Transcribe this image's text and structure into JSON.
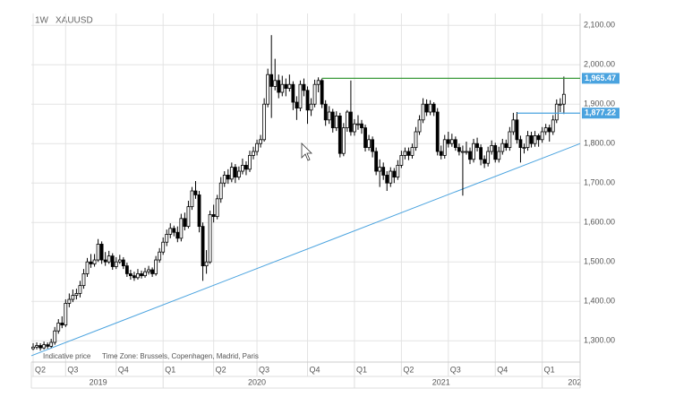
{
  "chart_data": {
    "type": "candlestick",
    "interval": "1W",
    "symbol": "XAUUSD",
    "footer_note": "Indicative price",
    "time_zone": "Time Zone: Brussels, Copenhagen, Madrid, Paris",
    "up_color": "#ffffff",
    "down_color": "#000000",
    "wick_color": "#000000",
    "ylim": [
      1246,
      2130
    ],
    "yticks": [
      {
        "value": 1300,
        "label": "1,300.00"
      },
      {
        "value": 1400,
        "label": "1,400.00"
      },
      {
        "value": 1500,
        "label": "1,500.00"
      },
      {
        "value": 1600,
        "label": "1,600.00"
      },
      {
        "value": 1700,
        "label": "1,700.00"
      },
      {
        "value": 1800,
        "label": "1,800.00"
      },
      {
        "value": 1900,
        "label": "1,900.00"
      },
      {
        "value": 2000,
        "label": "2,000.00"
      },
      {
        "value": 2100,
        "label": "2,100.00"
      }
    ],
    "xlim": [
      -0.5,
      151.5
    ],
    "xticks": [
      {
        "value": 0,
        "label": "Q2"
      },
      {
        "value": 9,
        "label": "Q3"
      },
      {
        "value": 23,
        "label": "Q4"
      },
      {
        "value": 36,
        "label": "Q1"
      },
      {
        "value": 50,
        "label": "Q2"
      },
      {
        "value": 62,
        "label": "Q3"
      },
      {
        "value": 76,
        "label": "Q4"
      },
      {
        "value": 89,
        "label": "Q1"
      },
      {
        "value": 102,
        "label": "Q2"
      },
      {
        "value": 115,
        "label": "Q3"
      },
      {
        "value": 128,
        "label": "Q4"
      },
      {
        "value": 141,
        "label": "Q1"
      }
    ],
    "year_labels": [
      {
        "value": 18,
        "label": "2019"
      },
      {
        "value": 62,
        "label": "2020"
      },
      {
        "value": 113,
        "label": "2021"
      },
      {
        "value": 150,
        "label": "202"
      }
    ],
    "grid": true,
    "trendline": {
      "color": "#4aa3df",
      "x": [
        -0.5,
        151.5
      ],
      "values": [
        1262,
        1800
      ]
    },
    "levels": [
      {
        "value": 1965.47,
        "label": "1,965.47",
        "start": 80,
        "color": "#3a9a3a"
      },
      {
        "value": 1877.22,
        "label": "1,877.22",
        "start": 134,
        "color": "#4aa3df"
      }
    ],
    "candles": [
      [
        1280,
        1294,
        1276,
        1284
      ],
      [
        1284,
        1296,
        1278,
        1288
      ],
      [
        1288,
        1294,
        1275,
        1282
      ],
      [
        1282,
        1298,
        1278,
        1290
      ],
      [
        1290,
        1296,
        1280,
        1286
      ],
      [
        1286,
        1305,
        1282,
        1296
      ],
      [
        1296,
        1335,
        1290,
        1325
      ],
      [
        1325,
        1355,
        1318,
        1345
      ],
      [
        1345,
        1362,
        1332,
        1340
      ],
      [
        1340,
        1405,
        1335,
        1395
      ],
      [
        1395,
        1420,
        1385,
        1405
      ],
      [
        1405,
        1430,
        1398,
        1415
      ],
      [
        1415,
        1432,
        1405,
        1420
      ],
      [
        1420,
        1452,
        1410,
        1440
      ],
      [
        1440,
        1482,
        1432,
        1470
      ],
      [
        1470,
        1510,
        1462,
        1500
      ],
      [
        1500,
        1520,
        1485,
        1495
      ],
      [
        1495,
        1520,
        1488,
        1505
      ],
      [
        1505,
        1558,
        1500,
        1545
      ],
      [
        1545,
        1552,
        1495,
        1505
      ],
      [
        1505,
        1525,
        1490,
        1500
      ],
      [
        1500,
        1528,
        1495,
        1515
      ],
      [
        1515,
        1522,
        1480,
        1488
      ],
      [
        1488,
        1512,
        1482,
        1500
      ],
      [
        1500,
        1518,
        1495,
        1505
      ],
      [
        1505,
        1512,
        1482,
        1490
      ],
      [
        1490,
        1498,
        1462,
        1470
      ],
      [
        1470,
        1480,
        1455,
        1465
      ],
      [
        1465,
        1475,
        1452,
        1460
      ],
      [
        1460,
        1482,
        1455,
        1470
      ],
      [
        1470,
        1478,
        1458,
        1465
      ],
      [
        1465,
        1485,
        1460,
        1475
      ],
      [
        1475,
        1490,
        1468,
        1480
      ],
      [
        1480,
        1486,
        1462,
        1470
      ],
      [
        1470,
        1515,
        1465,
        1505
      ],
      [
        1505,
        1535,
        1498,
        1525
      ],
      [
        1525,
        1562,
        1518,
        1550
      ],
      [
        1550,
        1582,
        1540,
        1570
      ],
      [
        1570,
        1598,
        1560,
        1585
      ],
      [
        1585,
        1592,
        1565,
        1575
      ],
      [
        1575,
        1590,
        1550,
        1560
      ],
      [
        1560,
        1622,
        1552,
        1610
      ],
      [
        1610,
        1625,
        1580,
        1590
      ],
      [
        1590,
        1655,
        1585,
        1640
      ],
      [
        1640,
        1690,
        1632,
        1680
      ],
      [
        1680,
        1705,
        1660,
        1670
      ],
      [
        1670,
        1680,
        1575,
        1590
      ],
      [
        1590,
        1600,
        1452,
        1490
      ],
      [
        1490,
        1530,
        1470,
        1500
      ],
      [
        1500,
        1630,
        1495,
        1620
      ],
      [
        1620,
        1645,
        1600,
        1615
      ],
      [
        1615,
        1670,
        1608,
        1660
      ],
      [
        1660,
        1715,
        1650,
        1700
      ],
      [
        1700,
        1730,
        1690,
        1720
      ],
      [
        1720,
        1735,
        1698,
        1710
      ],
      [
        1710,
        1752,
        1702,
        1740
      ],
      [
        1740,
        1748,
        1700,
        1715
      ],
      [
        1715,
        1742,
        1708,
        1730
      ],
      [
        1730,
        1762,
        1722,
        1745
      ],
      [
        1745,
        1755,
        1720,
        1735
      ],
      [
        1735,
        1782,
        1728,
        1770
      ],
      [
        1770,
        1792,
        1760,
        1780
      ],
      [
        1780,
        1810,
        1770,
        1800
      ],
      [
        1800,
        1822,
        1790,
        1810
      ],
      [
        1810,
        1915,
        1805,
        1900
      ],
      [
        1900,
        1990,
        1892,
        1975
      ],
      [
        1975,
        2075,
        1865,
        1945
      ],
      [
        1945,
        2015,
        1935,
        1960
      ],
      [
        1960,
        1975,
        1915,
        1930
      ],
      [
        1930,
        1972,
        1920,
        1950
      ],
      [
        1950,
        1965,
        1920,
        1940
      ],
      [
        1940,
        1975,
        1932,
        1950
      ],
      [
        1950,
        1958,
        1885,
        1905
      ],
      [
        1905,
        1920,
        1860,
        1890
      ],
      [
        1890,
        1960,
        1882,
        1950
      ],
      [
        1950,
        1965,
        1920,
        1935
      ],
      [
        1935,
        1945,
        1850,
        1885
      ],
      [
        1885,
        1915,
        1870,
        1900
      ],
      [
        1900,
        1962,
        1892,
        1950
      ],
      [
        1950,
        1968,
        1930,
        1960
      ],
      [
        1960,
        1965,
        1890,
        1900
      ],
      [
        1900,
        1910,
        1845,
        1860
      ],
      [
        1860,
        1895,
        1850,
        1880
      ],
      [
        1880,
        1888,
        1828,
        1840
      ],
      [
        1840,
        1882,
        1832,
        1870
      ],
      [
        1870,
        1878,
        1765,
        1775
      ],
      [
        1775,
        1852,
        1768,
        1840
      ],
      [
        1840,
        1885,
        1830,
        1880
      ],
      [
        1880,
        1960,
        1820,
        1830
      ],
      [
        1830,
        1862,
        1820,
        1850
      ],
      [
        1850,
        1872,
        1835,
        1850
      ],
      [
        1850,
        1860,
        1825,
        1840
      ],
      [
        1840,
        1848,
        1780,
        1790
      ],
      [
        1790,
        1822,
        1782,
        1810
      ],
      [
        1810,
        1818,
        1765,
        1780
      ],
      [
        1780,
        1790,
        1720,
        1730
      ],
      [
        1730,
        1760,
        1690,
        1740
      ],
      [
        1740,
        1752,
        1708,
        1720
      ],
      [
        1720,
        1730,
        1680,
        1700
      ],
      [
        1700,
        1740,
        1690,
        1730
      ],
      [
        1730,
        1738,
        1700,
        1715
      ],
      [
        1715,
        1758,
        1708,
        1745
      ],
      [
        1745,
        1782,
        1738,
        1770
      ],
      [
        1770,
        1790,
        1760,
        1780
      ],
      [
        1780,
        1790,
        1758,
        1770
      ],
      [
        1770,
        1800,
        1762,
        1790
      ],
      [
        1790,
        1842,
        1782,
        1830
      ],
      [
        1830,
        1872,
        1822,
        1860
      ],
      [
        1860,
        1915,
        1852,
        1900
      ],
      [
        1900,
        1912,
        1870,
        1880
      ],
      [
        1880,
        1910,
        1872,
        1900
      ],
      [
        1900,
        1905,
        1870,
        1880
      ],
      [
        1880,
        1890,
        1770,
        1780
      ],
      [
        1780,
        1795,
        1760,
        1770
      ],
      [
        1770,
        1822,
        1762,
        1810
      ],
      [
        1810,
        1830,
        1790,
        1800
      ],
      [
        1800,
        1825,
        1792,
        1810
      ],
      [
        1810,
        1818,
        1782,
        1790
      ],
      [
        1790,
        1800,
        1770,
        1780
      ],
      [
        1780,
        1795,
        1668,
        1780
      ],
      [
        1780,
        1805,
        1772,
        1780
      ],
      [
        1780,
        1790,
        1748,
        1760
      ],
      [
        1760,
        1812,
        1752,
        1800
      ],
      [
        1800,
        1815,
        1780,
        1790
      ],
      [
        1790,
        1798,
        1745,
        1760
      ],
      [
        1760,
        1770,
        1738,
        1750
      ],
      [
        1750,
        1792,
        1742,
        1780
      ],
      [
        1780,
        1808,
        1772,
        1795
      ],
      [
        1795,
        1802,
        1752,
        1760
      ],
      [
        1760,
        1792,
        1752,
        1780
      ],
      [
        1780,
        1812,
        1772,
        1800
      ],
      [
        1800,
        1810,
        1782,
        1790
      ],
      [
        1790,
        1842,
        1782,
        1830
      ],
      [
        1830,
        1878,
        1822,
        1860
      ],
      [
        1860,
        1880,
        1800,
        1810
      ],
      [
        1810,
        1820,
        1752,
        1790
      ],
      [
        1790,
        1800,
        1775,
        1790
      ],
      [
        1790,
        1832,
        1782,
        1820
      ],
      [
        1820,
        1830,
        1790,
        1800
      ],
      [
        1800,
        1832,
        1792,
        1820
      ],
      [
        1820,
        1825,
        1792,
        1810
      ],
      [
        1810,
        1842,
        1802,
        1830
      ],
      [
        1830,
        1850,
        1822,
        1840
      ],
      [
        1840,
        1848,
        1805,
        1830
      ],
      [
        1830,
        1872,
        1822,
        1860
      ],
      [
        1860,
        1912,
        1852,
        1900
      ],
      [
        1900,
        1915,
        1880,
        1900
      ],
      [
        1900,
        1970,
        1875,
        1925
      ]
    ]
  }
}
